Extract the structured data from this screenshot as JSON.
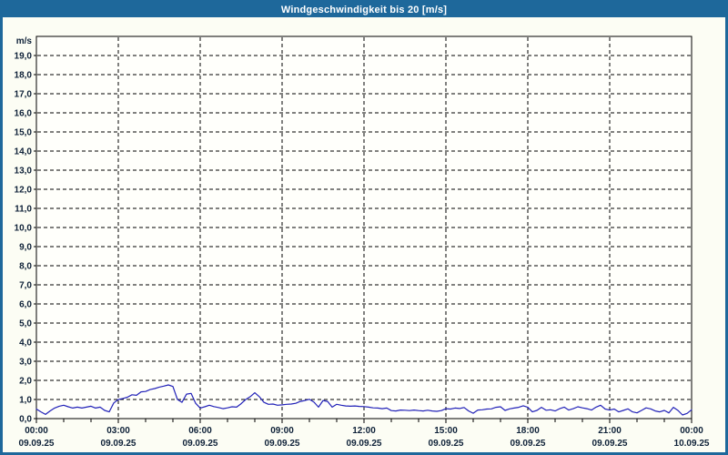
{
  "colors": {
    "titlebar": "#1e689b",
    "outer_border": "#1e689b",
    "background": "#fcfdf4",
    "plot_background": "#fffffb",
    "axis_frame": "#000000",
    "gridline": "#000000",
    "line": "#2222b8",
    "label_text": "#0e2138",
    "title_text": "#ffffff"
  },
  "chart_data": {
    "type": "line",
    "title": "Windgeschwindigkeit bis 20 [m/s]",
    "unit_label": "m/s",
    "ylim": [
      0,
      20
    ],
    "y_tick_step": 1.0,
    "y_tick_labels": [
      "0,0",
      "1,0",
      "2,0",
      "3,0",
      "4,0",
      "5,0",
      "6,0",
      "7,0",
      "8,0",
      "9,0",
      "10,0",
      "11,0",
      "12,0",
      "13,0",
      "14,0",
      "15,0",
      "16,0",
      "17,0",
      "18,0",
      "19,0"
    ],
    "grid": "dashed",
    "x_total_hours": 24,
    "x_minor_step_hours": 1,
    "x_major_step_hours": 3,
    "x_labels": [
      {
        "time": "00:00",
        "date": "09.09.25"
      },
      {
        "time": "03:00",
        "date": "09.09.25"
      },
      {
        "time": "06:00",
        "date": "09.09.25"
      },
      {
        "time": "09:00",
        "date": "09.09.25"
      },
      {
        "time": "12:00",
        "date": "09.09.25"
      },
      {
        "time": "15:00",
        "date": "09.09.25"
      },
      {
        "time": "18:00",
        "date": "09.09.25"
      },
      {
        "time": "21:00",
        "date": "09.09.25"
      },
      {
        "time": "00:00",
        "date": "10.09.25"
      }
    ],
    "sample_interval_minutes": 10,
    "series": [
      {
        "name": "Windgeschwindigkeit",
        "color": "#2222b8",
        "values": [
          0.5,
          0.35,
          0.22,
          0.4,
          0.55,
          0.65,
          0.7,
          0.62,
          0.55,
          0.6,
          0.55,
          0.6,
          0.65,
          0.55,
          0.6,
          0.43,
          0.35,
          0.82,
          1.0,
          1.05,
          1.12,
          1.25,
          1.22,
          1.4,
          1.42,
          1.52,
          1.57,
          1.65,
          1.7,
          1.76,
          1.68,
          1.0,
          0.85,
          1.28,
          1.32,
          0.8,
          0.55,
          0.62,
          0.7,
          0.63,
          0.58,
          0.52,
          0.56,
          0.62,
          0.6,
          0.78,
          1.0,
          1.15,
          1.35,
          1.15,
          0.85,
          0.75,
          0.76,
          0.7,
          0.72,
          0.75,
          0.76,
          0.8,
          0.9,
          0.95,
          1.01,
          0.86,
          0.6,
          0.95,
          0.9,
          0.6,
          0.75,
          0.7,
          0.66,
          0.65,
          0.66,
          0.64,
          0.63,
          0.6,
          0.56,
          0.55,
          0.52,
          0.55,
          0.42,
          0.4,
          0.45,
          0.44,
          0.42,
          0.45,
          0.42,
          0.4,
          0.44,
          0.4,
          0.38,
          0.42,
          0.52,
          0.5,
          0.55,
          0.53,
          0.58,
          0.4,
          0.28,
          0.45,
          0.46,
          0.5,
          0.51,
          0.59,
          0.62,
          0.43,
          0.51,
          0.55,
          0.59,
          0.67,
          0.59,
          0.35,
          0.43,
          0.59,
          0.44,
          0.46,
          0.4,
          0.52,
          0.6,
          0.45,
          0.52,
          0.62,
          0.56,
          0.52,
          0.45,
          0.6,
          0.7,
          0.5,
          0.45,
          0.5,
          0.35,
          0.43,
          0.51,
          0.35,
          0.3,
          0.43,
          0.56,
          0.51,
          0.4,
          0.35,
          0.43,
          0.3,
          0.59,
          0.43,
          0.19,
          0.27,
          0.46
        ]
      }
    ]
  }
}
